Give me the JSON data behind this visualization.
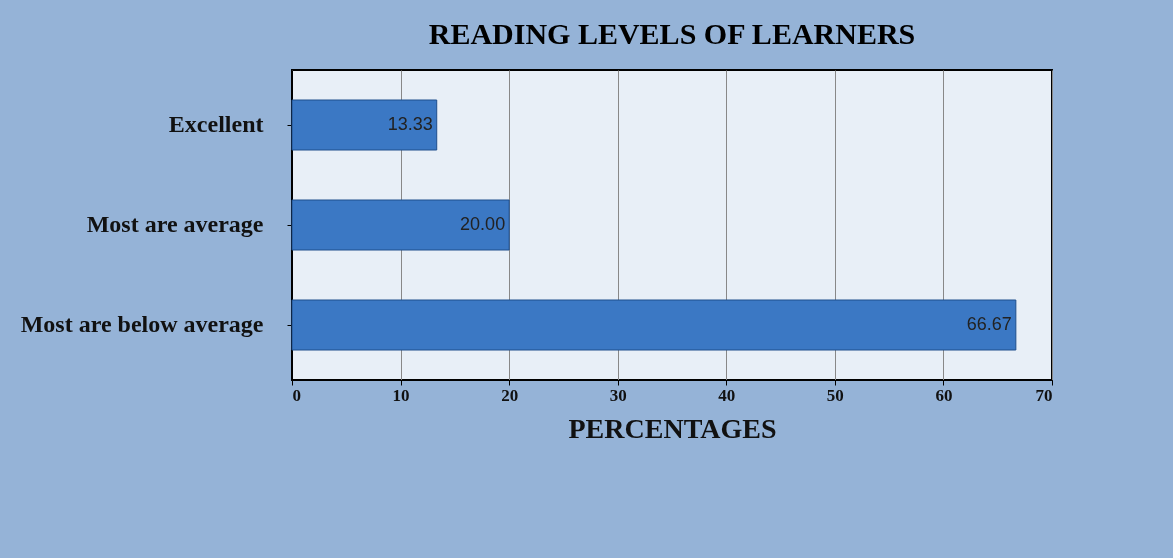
{
  "chart_data": {
    "type": "bar",
    "orientation": "horizontal",
    "title": "READING LEVELS OF LEARNERS",
    "categories": [
      "Excellent",
      "Most are average",
      "Most are below average"
    ],
    "values": [
      13.33,
      20.0,
      66.67
    ],
    "value_labels": [
      "13.33",
      "20.00",
      "66.67"
    ],
    "color": "#3b78c4",
    "xlabel": "PERCENTAGES",
    "xlim": [
      0,
      70
    ],
    "xticks": [
      0,
      10,
      20,
      30,
      40,
      50,
      60,
      70
    ],
    "grid": "x"
  }
}
